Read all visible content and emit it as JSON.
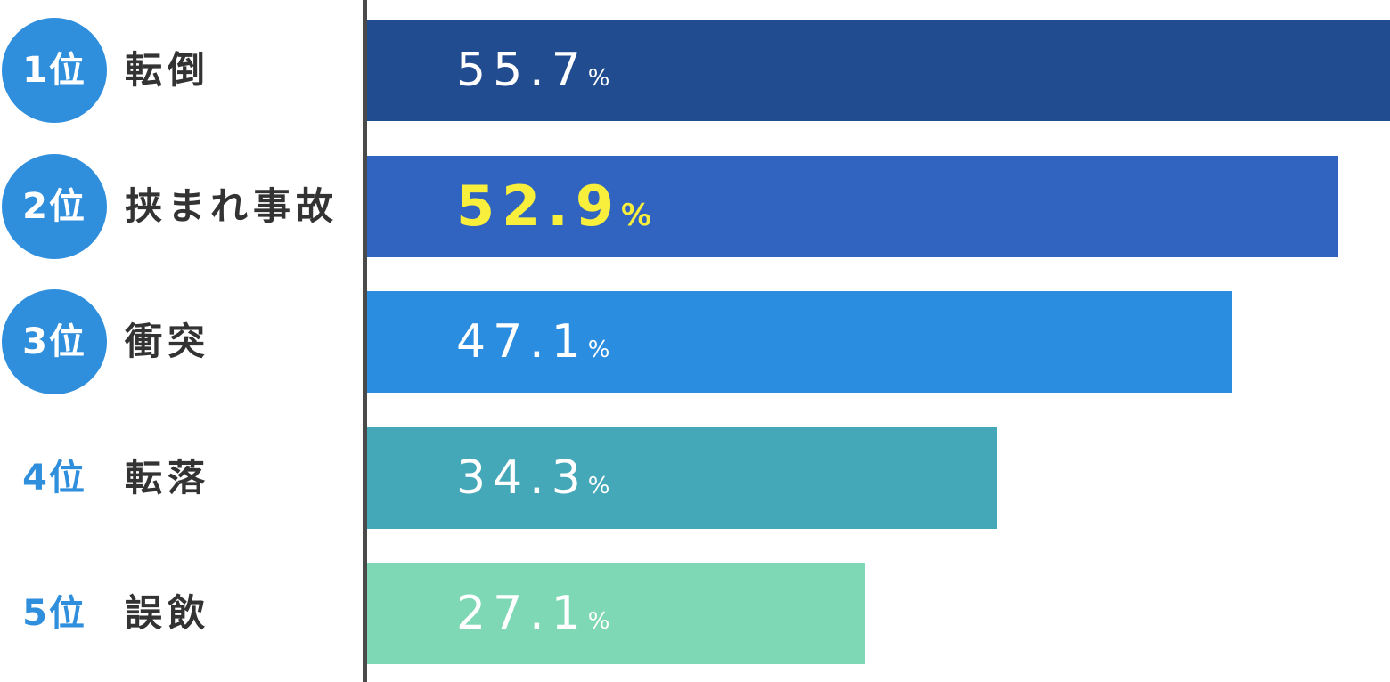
{
  "chart_data": {
    "type": "bar",
    "orientation": "horizontal",
    "categories": [
      "転倒",
      "挟まれ事故",
      "衝突",
      "転落",
      "誤飲"
    ],
    "ranks": [
      "1位",
      "2位",
      "3位",
      "4位",
      "5位"
    ],
    "values": [
      55.7,
      52.9,
      47.1,
      34.3,
      27.1
    ],
    "value_unit": "%",
    "xlim": [
      0,
      55.7
    ],
    "bar_colors": [
      "#214c8f",
      "#3164c0",
      "#2b8ddf",
      "#45a8b8",
      "#7fd8b5"
    ],
    "label_colors": [
      "#ffffff",
      "#f8ee3c",
      "#ffffff",
      "#ffffff",
      "#ffffff"
    ],
    "highlight_index": 1,
    "rank_badge_color": "#2f8fdc",
    "rank_badge_rows": [
      0,
      1,
      2
    ],
    "grid": false,
    "legend": "none"
  }
}
